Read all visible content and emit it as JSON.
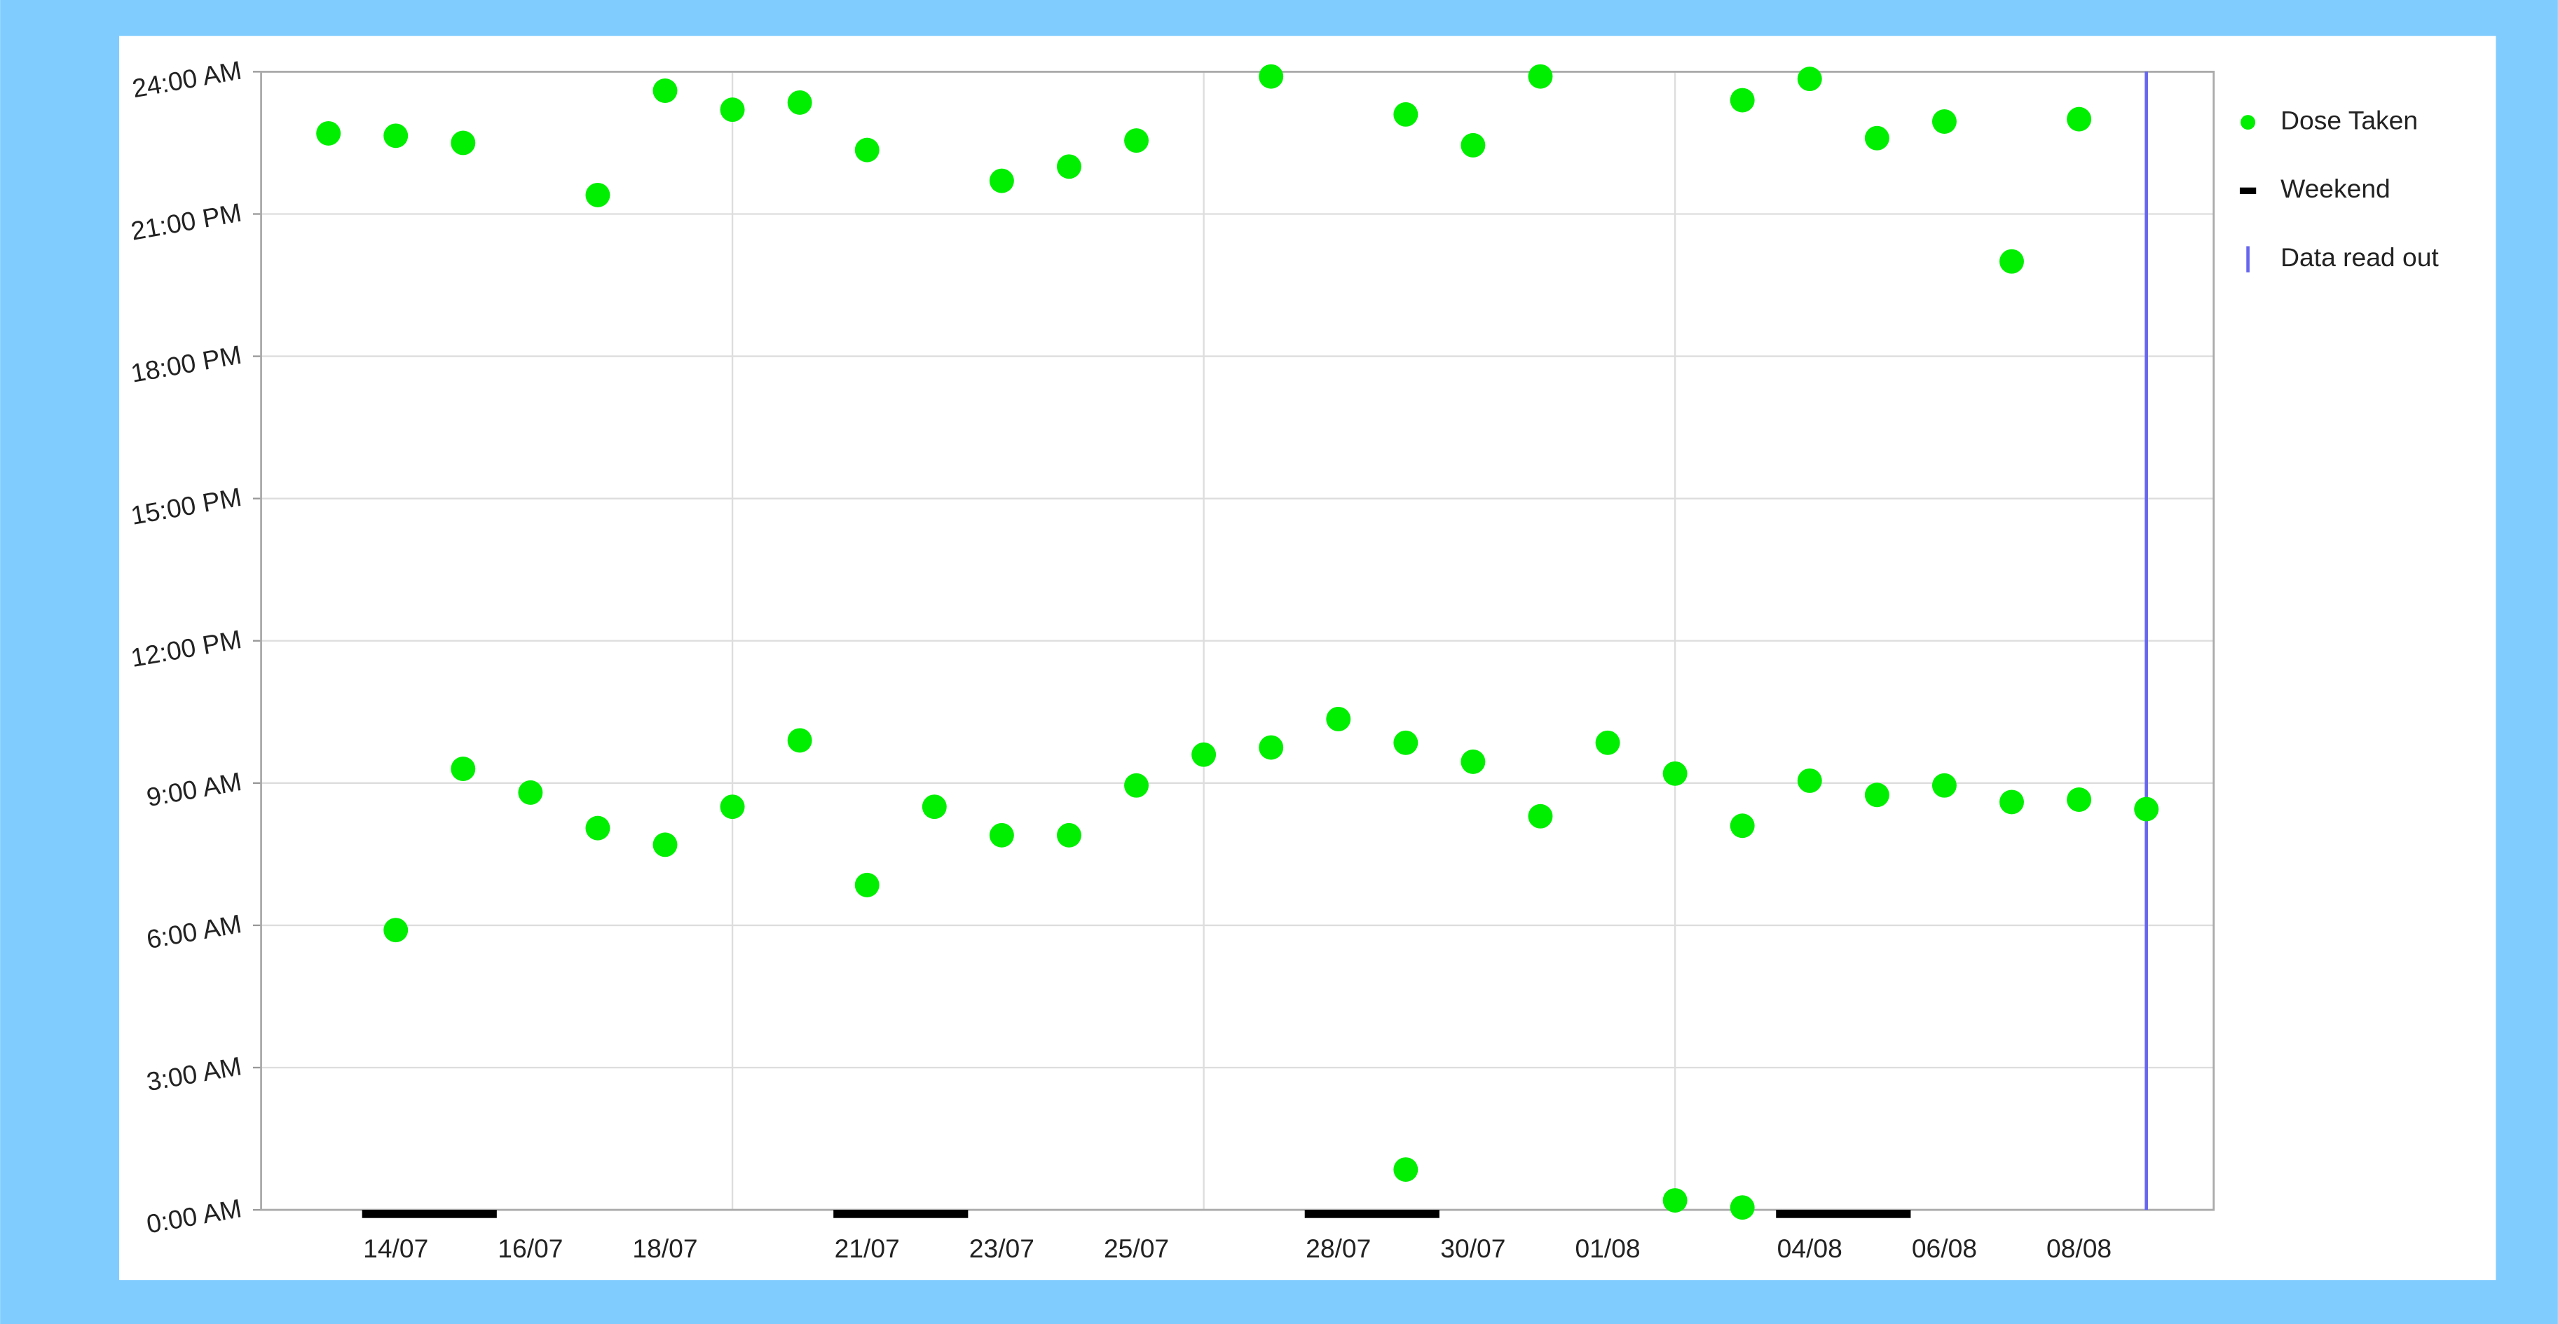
{
  "chart_data": {
    "type": "scatter",
    "series": [
      {
        "name": "Dose Taken",
        "color": "#00ee00",
        "x": [
          "13/07",
          "14/07",
          "14/07",
          "15/07",
          "15/07",
          "16/07",
          "17/07",
          "17/07",
          "18/07",
          "18/07",
          "19/07",
          "19/07",
          "20/07",
          "20/07",
          "21/07",
          "21/07",
          "22/07",
          "23/07",
          "23/07",
          "24/07",
          "24/07",
          "25/07",
          "25/07",
          "26/07",
          "27/07",
          "27/07",
          "28/07",
          "29/07",
          "29/07",
          "29/07",
          "30/07",
          "30/07",
          "31/07",
          "31/07",
          "01/08",
          "02/08",
          "02/08",
          "03/08",
          "03/08",
          "03/08",
          "04/08",
          "04/08",
          "05/08",
          "05/08",
          "06/08",
          "06/08",
          "07/08",
          "07/08",
          "08/08",
          "08/08",
          "09/08"
        ],
        "values": [
          22.7,
          22.65,
          5.9,
          22.5,
          9.3,
          8.8,
          21.4,
          8.05,
          23.6,
          7.7,
          23.2,
          8.5,
          23.35,
          9.9,
          22.35,
          6.85,
          8.5,
          21.7,
          7.9,
          22.0,
          7.9,
          22.55,
          8.95,
          9.6,
          23.9,
          9.75,
          10.35,
          23.1,
          9.85,
          0.85,
          22.45,
          9.45,
          23.9,
          8.3,
          9.85,
          9.2,
          0.2,
          23.4,
          8.1,
          0.05,
          23.85,
          9.05,
          22.6,
          8.75,
          22.95,
          8.95,
          20.0,
          8.6,
          23.0,
          8.65,
          8.45
        ]
      }
    ],
    "weekend": {
      "name": "Weekend",
      "color": "#000000",
      "spans": [
        [
          "14/07",
          "15/07"
        ],
        [
          "21/07",
          "22/07"
        ],
        [
          "28/07",
          "29/07"
        ],
        [
          "04/08",
          "05/08"
        ]
      ]
    },
    "readout": {
      "name": "Data read out",
      "color": "#6666ee",
      "x": "09/08"
    },
    "xlim": [
      "12/07",
      "10/08"
    ],
    "xticks": [
      "14/07",
      "16/07",
      "18/07",
      "21/07",
      "23/07",
      "25/07",
      "28/07",
      "30/07",
      "01/08",
      "04/08",
      "06/08",
      "08/08"
    ],
    "xgrid": [
      "19/07",
      "26/07",
      "02/08",
      "09/08"
    ],
    "ylim": [
      0,
      24
    ],
    "yticks": [
      {
        "value": 0,
        "label": "0:00 AM"
      },
      {
        "value": 3,
        "label": "3:00 AM"
      },
      {
        "value": 6,
        "label": "6:00 AM"
      },
      {
        "value": 9,
        "label": "9:00 AM"
      },
      {
        "value": 12,
        "label": "12:00 PM"
      },
      {
        "value": 15,
        "label": "15:00 PM"
      },
      {
        "value": 18,
        "label": "18:00 PM"
      },
      {
        "value": 21,
        "label": "21:00 PM"
      },
      {
        "value": 24,
        "label": "24:00 AM"
      }
    ],
    "grid": true
  }
}
